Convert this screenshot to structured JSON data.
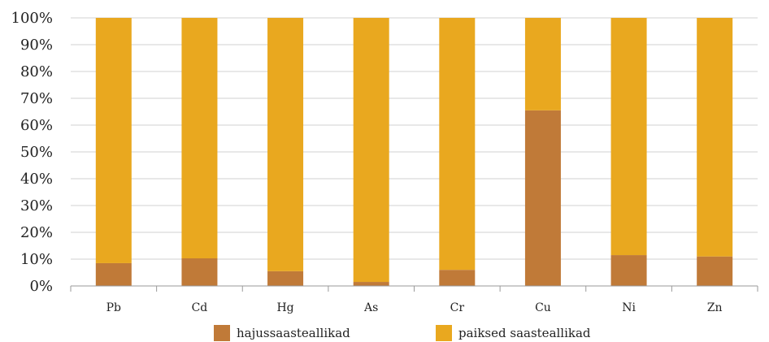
{
  "chart_data": {
    "type": "bar",
    "stacked": true,
    "percent_stacked": true,
    "categories": [
      "Pb",
      "Cd",
      "Hg",
      "As",
      "Cr",
      "Cu",
      "Ni",
      "Zn"
    ],
    "series": [
      {
        "name": "hajussaasteallikad",
        "color": "#c07a38",
        "values": [
          8.5,
          10.3,
          5.5,
          1.5,
          6.0,
          65.5,
          11.5,
          11.0
        ]
      },
      {
        "name": "paiksed saasteallikad",
        "color": "#e9a81f",
        "values": [
          91.5,
          89.7,
          94.5,
          98.5,
          94.0,
          34.5,
          88.5,
          89.0
        ]
      }
    ],
    "ylim": [
      0,
      100
    ],
    "yticks": [
      "0%",
      "10%",
      "20%",
      "30%",
      "40%",
      "50%",
      "60%",
      "70%",
      "80%",
      "90%",
      "100%"
    ],
    "grid": true,
    "legend_position": "bottom",
    "title": "",
    "xlabel": "",
    "ylabel": ""
  }
}
